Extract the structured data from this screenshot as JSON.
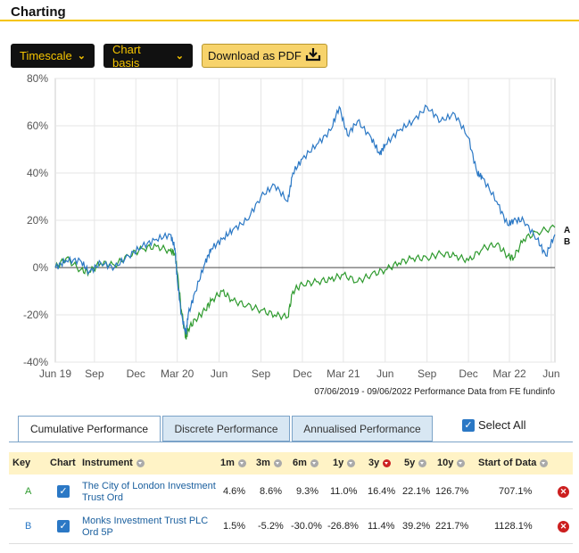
{
  "heading": "Charting",
  "toolbar": {
    "timescale_label": "Timescale",
    "chart_basis_label": "Chart basis",
    "download_label": "Download as PDF"
  },
  "chart_data": {
    "type": "line",
    "x_ticks": [
      "Jun 19",
      "Sep",
      "Dec",
      "Mar 20",
      "Jun",
      "Sep",
      "Dec",
      "Mar 21",
      "Jun",
      "Sep",
      "Dec",
      "Mar 22",
      "Jun"
    ],
    "y_ticks": [
      "80%",
      "60%",
      "40%",
      "20%",
      "0%",
      "-20%",
      "-40%"
    ],
    "ylim": [
      -40,
      80
    ],
    "xlim": [
      "2019-06-07",
      "2022-06-09"
    ],
    "footnote": "07/06/2019 - 09/06/2022 Performance Data from FE fundinfo",
    "series": [
      {
        "key": "A",
        "color": "#2e9a2e",
        "points": [
          [
            "2019-06-07",
            0
          ],
          [
            "2019-07-01",
            4
          ],
          [
            "2019-08-01",
            -1
          ],
          [
            "2019-08-20",
            -2
          ],
          [
            "2019-09-15",
            2
          ],
          [
            "2019-10-15",
            1
          ],
          [
            "2019-11-15",
            5
          ],
          [
            "2019-12-15",
            8
          ],
          [
            "2020-01-15",
            9
          ],
          [
            "2020-02-15",
            7
          ],
          [
            "2020-02-25",
            6
          ],
          [
            "2020-03-01",
            -2
          ],
          [
            "2020-03-10",
            -18
          ],
          [
            "2020-03-20",
            -30
          ],
          [
            "2020-03-25",
            -26
          ],
          [
            "2020-04-10",
            -22
          ],
          [
            "2020-05-01",
            -18
          ],
          [
            "2020-05-15",
            -14
          ],
          [
            "2020-06-08",
            -10
          ],
          [
            "2020-07-01",
            -14
          ],
          [
            "2020-08-01",
            -16
          ],
          [
            "2020-09-01",
            -18
          ],
          [
            "2020-10-01",
            -20
          ],
          [
            "2020-10-30",
            -21
          ],
          [
            "2020-11-10",
            -10
          ],
          [
            "2020-12-01",
            -7
          ],
          [
            "2021-01-01",
            -6
          ],
          [
            "2021-02-01",
            -5
          ],
          [
            "2021-03-01",
            -3
          ],
          [
            "2021-04-01",
            -6
          ],
          [
            "2021-05-01",
            -3
          ],
          [
            "2021-06-01",
            -1
          ],
          [
            "2021-07-01",
            2
          ],
          [
            "2021-08-01",
            4
          ],
          [
            "2021-09-01",
            4
          ],
          [
            "2021-10-01",
            6
          ],
          [
            "2021-11-01",
            5
          ],
          [
            "2021-12-01",
            3
          ],
          [
            "2022-01-01",
            8
          ],
          [
            "2022-02-01",
            10
          ],
          [
            "2022-02-25",
            5
          ],
          [
            "2022-03-10",
            4
          ],
          [
            "2022-04-01",
            12
          ],
          [
            "2022-05-01",
            15
          ],
          [
            "2022-06-09",
            17
          ]
        ]
      },
      {
        "key": "B",
        "color": "#2b78c5",
        "points": [
          [
            "2019-06-07",
            0
          ],
          [
            "2019-07-01",
            3
          ],
          [
            "2019-08-01",
            3
          ],
          [
            "2019-08-20",
            -2
          ],
          [
            "2019-09-15",
            2
          ],
          [
            "2019-10-15",
            0
          ],
          [
            "2019-11-15",
            5
          ],
          [
            "2019-12-15",
            9
          ],
          [
            "2020-01-15",
            12
          ],
          [
            "2020-02-15",
            14
          ],
          [
            "2020-02-25",
            8
          ],
          [
            "2020-03-01",
            -5
          ],
          [
            "2020-03-10",
            -20
          ],
          [
            "2020-03-20",
            -28
          ],
          [
            "2020-03-25",
            -20
          ],
          [
            "2020-04-10",
            -10
          ],
          [
            "2020-05-01",
            2
          ],
          [
            "2020-05-15",
            8
          ],
          [
            "2020-06-08",
            12
          ],
          [
            "2020-07-01",
            16
          ],
          [
            "2020-08-01",
            20
          ],
          [
            "2020-09-01",
            30
          ],
          [
            "2020-10-01",
            35
          ],
          [
            "2020-10-30",
            28
          ],
          [
            "2020-11-10",
            40
          ],
          [
            "2020-12-01",
            46
          ],
          [
            "2021-01-01",
            52
          ],
          [
            "2021-02-01",
            58
          ],
          [
            "2021-02-20",
            68
          ],
          [
            "2021-03-10",
            56
          ],
          [
            "2021-04-01",
            62
          ],
          [
            "2021-05-01",
            55
          ],
          [
            "2021-05-20",
            48
          ],
          [
            "2021-06-01",
            52
          ],
          [
            "2021-07-01",
            58
          ],
          [
            "2021-08-01",
            62
          ],
          [
            "2021-09-01",
            68
          ],
          [
            "2021-10-01",
            62
          ],
          [
            "2021-11-01",
            65
          ],
          [
            "2021-12-01",
            55
          ],
          [
            "2021-12-20",
            40
          ],
          [
            "2022-01-01",
            38
          ],
          [
            "2022-02-01",
            28
          ],
          [
            "2022-02-25",
            18
          ],
          [
            "2022-03-10",
            20
          ],
          [
            "2022-04-01",
            20
          ],
          [
            "2022-05-01",
            12
          ],
          [
            "2022-05-20",
            5
          ],
          [
            "2022-06-09",
            14
          ]
        ]
      }
    ]
  },
  "tabs": [
    {
      "label": "Cumulative Performance"
    },
    {
      "label": "Discrete Performance"
    },
    {
      "label": "Annualised Performance"
    }
  ],
  "select_all_label": "Select All",
  "table": {
    "headers": {
      "key": "Key",
      "chart": "Chart",
      "instrument": "Instrument",
      "m1": "1m",
      "m3": "3m",
      "m6": "6m",
      "y1": "1y",
      "y3": "3y",
      "y5": "5y",
      "y10": "10y",
      "start": "Start of Data"
    },
    "rows": [
      {
        "key": "A",
        "key_color": "#2e9a2e",
        "instrument": "The City of London Investment Trust Ord",
        "m1": "4.6%",
        "m3": "8.6%",
        "m6": "9.3%",
        "y1": "11.0%",
        "y3": "16.4%",
        "y5": "22.1%",
        "y10": "126.7%",
        "start": "707.1%"
      },
      {
        "key": "B",
        "key_color": "#2b78c5",
        "instrument": "Monks Investment Trust PLC Ord 5P",
        "m1": "1.5%",
        "m3": "-5.2%",
        "m6": "-30.0%",
        "y1": "-26.8%",
        "y3": "11.4%",
        "y5": "39.2%",
        "y10": "221.7%",
        "start": "1128.1%"
      }
    ]
  }
}
